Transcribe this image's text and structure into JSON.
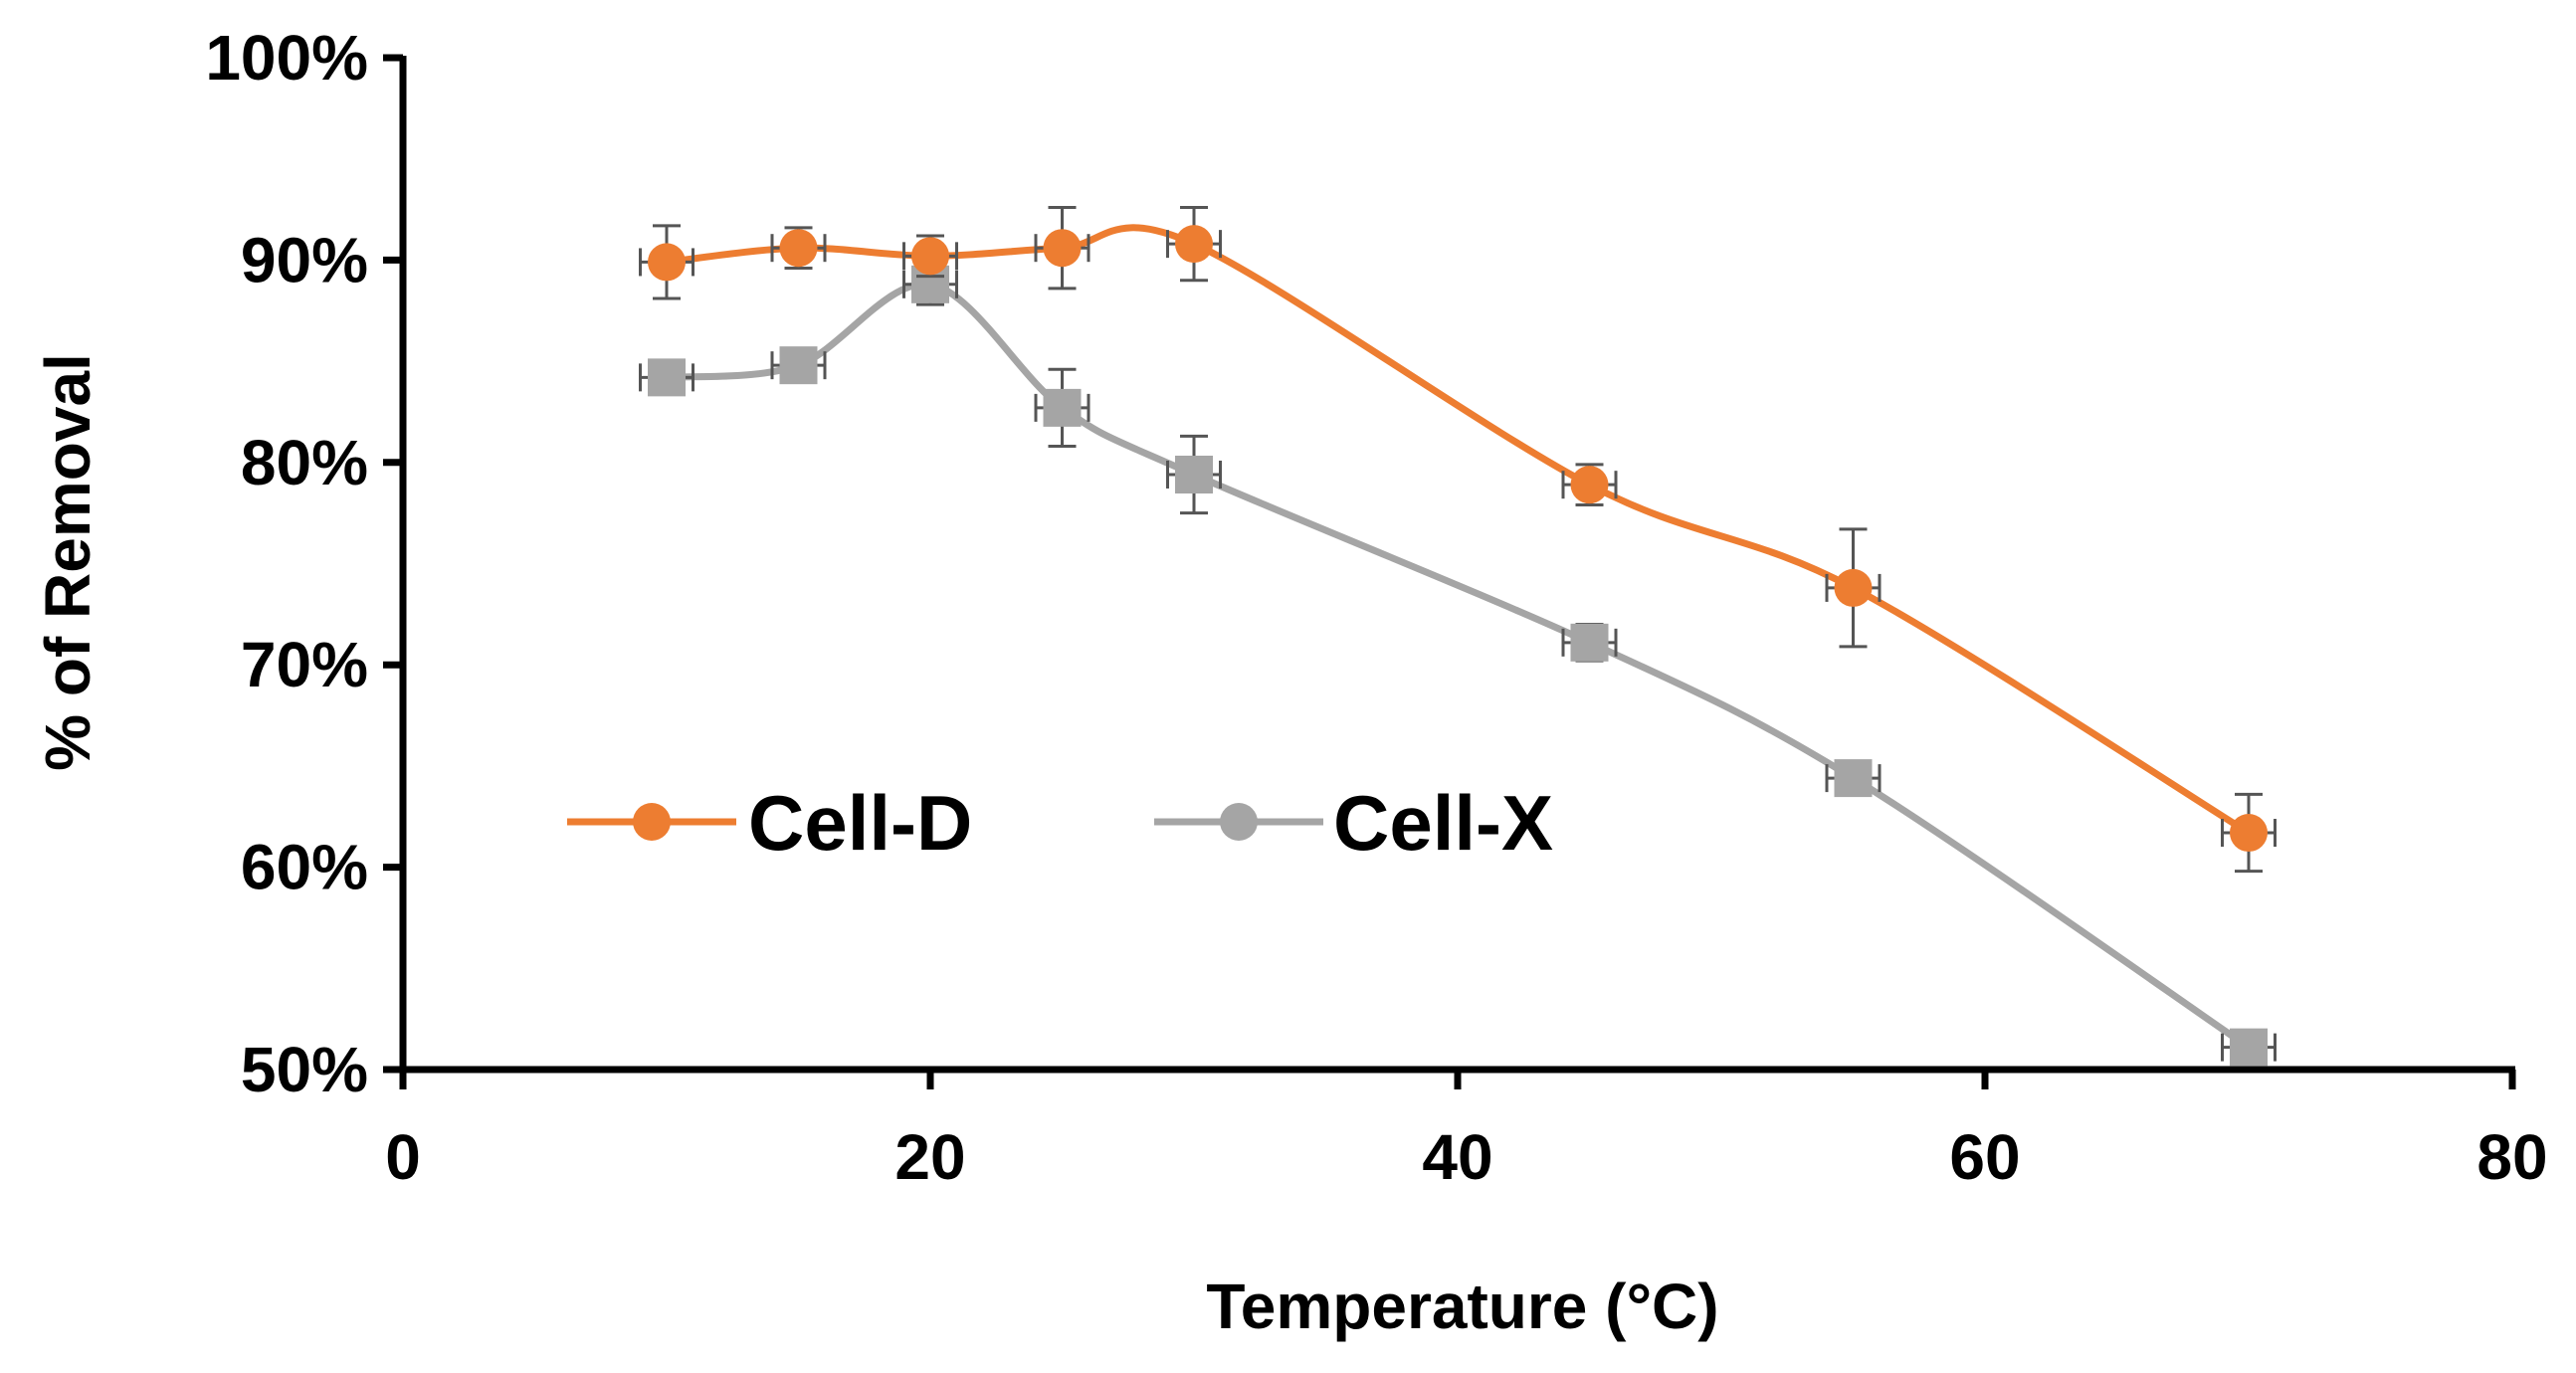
{
  "chart_data": {
    "type": "line",
    "title": "",
    "xlabel": "Temperature (°C)",
    "ylabel": "% of Removal",
    "xlim": [
      0,
      80
    ],
    "ylim": [
      50,
      100
    ],
    "x_ticks": [
      0,
      20,
      40,
      60,
      80
    ],
    "y_ticks": [
      50,
      60,
      70,
      80,
      90,
      100
    ],
    "x_tick_labels": [
      "0",
      "20",
      "40",
      "60",
      "80"
    ],
    "y_tick_labels": [
      "50%",
      "60%",
      "70%",
      "80%",
      "90%",
      "100%"
    ],
    "grid": false,
    "legend_position": "middle-left",
    "series": [
      {
        "name": "Cell-D",
        "color": "#ED7D31",
        "marker": "circle",
        "x": [
          10,
          15,
          20,
          25,
          30,
          45,
          55,
          70
        ],
        "y": [
          89.9,
          90.6,
          90.2,
          90.6,
          90.8,
          78.9,
          73.8,
          61.7
        ],
        "yerr": [
          1.8,
          1.0,
          1.0,
          2.0,
          1.8,
          1.0,
          2.9,
          1.9
        ],
        "xerr": [
          1.0,
          1.0,
          1.0,
          1.0,
          1.0,
          1.0,
          1.0,
          1.0
        ]
      },
      {
        "name": "Cell-X",
        "color": "#A5A5A5",
        "marker": "square",
        "x": [
          10,
          15,
          20,
          25,
          30,
          45,
          55,
          70
        ],
        "y": [
          84.2,
          84.8,
          88.8,
          82.7,
          79.4,
          71.1,
          64.4,
          51.1
        ],
        "yerr": [
          0.8,
          0.8,
          1.0,
          1.9,
          1.9,
          0.9,
          0.8,
          0.5
        ],
        "xerr": [
          1.0,
          1.0,
          1.0,
          1.0,
          1.0,
          1.0,
          1.0,
          1.0
        ]
      }
    ]
  }
}
